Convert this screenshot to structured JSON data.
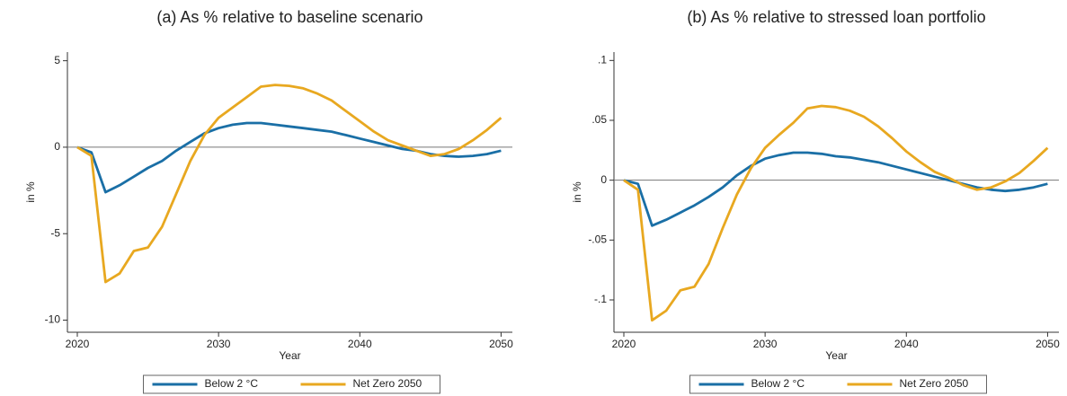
{
  "chart_data": [
    {
      "type": "line",
      "title": "(a)  As % relative to baseline scenario",
      "xlabel": "Year",
      "ylabel": "in %",
      "x": [
        2020,
        2021,
        2022,
        2023,
        2024,
        2025,
        2026,
        2027,
        2028,
        2029,
        2030,
        2031,
        2032,
        2033,
        2034,
        2035,
        2036,
        2037,
        2038,
        2039,
        2040,
        2041,
        2042,
        2043,
        2044,
        2045,
        2046,
        2047,
        2048,
        2049,
        2050
      ],
      "series": [
        {
          "name": "Below 2 °C",
          "color": "#1a6fa6",
          "values": [
            0,
            -0.3,
            -2.6,
            -2.2,
            -1.7,
            -1.2,
            -0.8,
            -0.2,
            0.3,
            0.8,
            1.1,
            1.3,
            1.4,
            1.4,
            1.3,
            1.2,
            1.1,
            1.0,
            0.9,
            0.7,
            0.5,
            0.3,
            0.1,
            -0.1,
            -0.2,
            -0.4,
            -0.5,
            -0.55,
            -0.5,
            -0.4,
            -0.2
          ]
        },
        {
          "name": "Net Zero 2050",
          "color": "#e8a820",
          "values": [
            0,
            -0.5,
            -7.8,
            -7.3,
            -6.0,
            -5.8,
            -4.6,
            -2.7,
            -0.8,
            0.7,
            1.7,
            2.3,
            2.9,
            3.5,
            3.6,
            3.55,
            3.4,
            3.1,
            2.7,
            2.1,
            1.5,
            0.9,
            0.4,
            0.1,
            -0.2,
            -0.5,
            -0.4,
            -0.1,
            0.4,
            1.0,
            1.7
          ]
        }
      ],
      "hline": 0,
      "xlim": [
        2019.3,
        2050.8
      ],
      "ylim": [
        -10.7,
        5.5
      ],
      "xticks": [
        2020,
        2030,
        2040,
        2050
      ],
      "yticks": [
        5,
        0,
        -5,
        -10
      ]
    },
    {
      "type": "line",
      "title": "(b)  As % relative to stressed loan portfolio",
      "xlabel": "Year",
      "ylabel": "in %",
      "x": [
        2020,
        2021,
        2022,
        2023,
        2024,
        2025,
        2026,
        2027,
        2028,
        2029,
        2030,
        2031,
        2032,
        2033,
        2034,
        2035,
        2036,
        2037,
        2038,
        2039,
        2040,
        2041,
        2042,
        2043,
        2044,
        2045,
        2046,
        2047,
        2048,
        2049,
        2050
      ],
      "series": [
        {
          "name": "Below 2 °C",
          "color": "#1a6fa6",
          "values": [
            0,
            -0.003,
            -0.038,
            -0.033,
            -0.027,
            -0.021,
            -0.014,
            -0.006,
            0.004,
            0.012,
            0.018,
            0.021,
            0.023,
            0.023,
            0.022,
            0.02,
            0.019,
            0.017,
            0.015,
            0.012,
            0.009,
            0.006,
            0.003,
            0,
            -0.003,
            -0.006,
            -0.008,
            -0.009,
            -0.008,
            -0.006,
            -0.003
          ]
        },
        {
          "name": "Net Zero 2050",
          "color": "#e8a820",
          "values": [
            0,
            -0.008,
            -0.117,
            -0.109,
            -0.092,
            -0.089,
            -0.07,
            -0.04,
            -0.012,
            0.01,
            0.027,
            0.038,
            0.048,
            0.06,
            0.062,
            0.061,
            0.058,
            0.053,
            0.045,
            0.035,
            0.024,
            0.015,
            0.007,
            0.002,
            -0.004,
            -0.008,
            -0.006,
            -0.001,
            0.006,
            0.016,
            0.027
          ]
        }
      ],
      "hline": 0,
      "xlim": [
        2019.3,
        2050.8
      ],
      "ylim": [
        -0.127,
        0.107
      ],
      "xticks": [
        2020,
        2030,
        2040,
        2050
      ],
      "yticks": [
        {
          "value": 0.1,
          "label": ".1"
        },
        {
          "value": 0.05,
          "label": ".05"
        },
        0,
        {
          "value": -0.05,
          "label": "-.05"
        },
        {
          "value": -0.1,
          "label": "-.1"
        }
      ]
    }
  ]
}
